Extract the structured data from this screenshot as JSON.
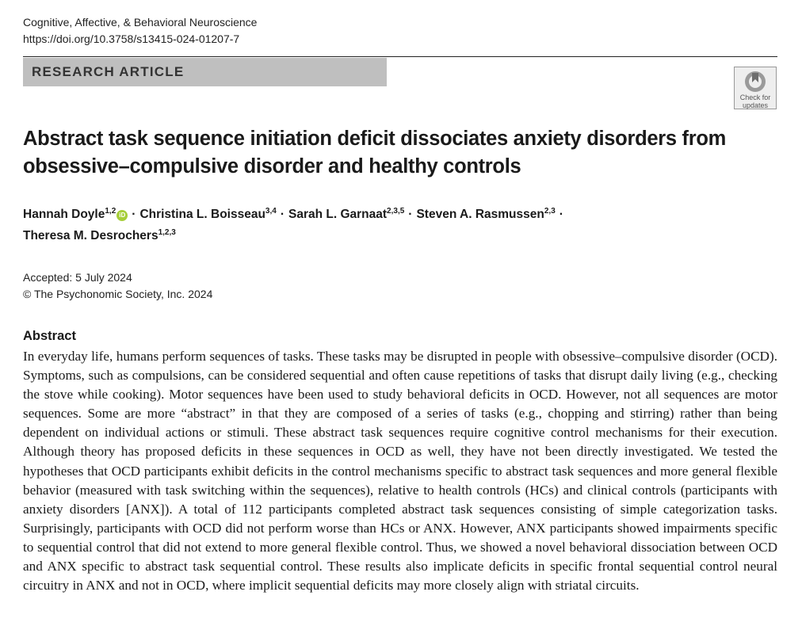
{
  "header": {
    "journal": "Cognitive, Affective, & Behavioral Neuroscience",
    "doi": "https://doi.org/10.3758/s13415-024-01207-7"
  },
  "article_type": "RESEARCH ARTICLE",
  "check_updates": {
    "line1": "Check for",
    "line2": "updates",
    "icon": "check-for-updates-icon"
  },
  "title": "Abstract task sequence initiation deficit dissociates anxiety disorders from obsessive–compulsive disorder and healthy controls",
  "authors": [
    {
      "name": "Hannah Doyle",
      "aff": "1,2",
      "orcid": true
    },
    {
      "name": "Christina L. Boisseau",
      "aff": "3,4"
    },
    {
      "name": "Sarah L. Garnaat",
      "aff": "2,3,5"
    },
    {
      "name": "Steven A. Rasmussen",
      "aff": "2,3"
    },
    {
      "name": "Theresa M. Desrochers",
      "aff": "1,2,3"
    }
  ],
  "author_separator": "·",
  "orcid_label": "iD",
  "accepted": "Accepted: 5 July 2024",
  "copyright": "© The Psychonomic Society, Inc. 2024",
  "abstract": {
    "heading": "Abstract",
    "text": "In everyday life, humans perform sequences of tasks. These tasks may be disrupted in people with obsessive–compulsive disorder (OCD). Symptoms, such as compulsions, can be considered sequential and often cause repetitions of tasks that disrupt daily living (e.g., checking the stove while cooking). Motor sequences have been used to study behavioral deficits in OCD. However, not all sequences are motor sequences. Some are more “abstract” in that they are composed of a series of tasks (e.g., chopping and stirring) rather than being dependent on individual actions or stimuli. These abstract task sequences require cognitive control mechanisms for their execution. Although theory has proposed deficits in these sequences in OCD as well, they have not been directly investigated. We tested the hypotheses that OCD participants exhibit deficits in the control mechanisms specific to abstract task sequences and more general flexible behavior (measured with task switching within the sequences), relative to health controls (HCs) and clinical controls (participants with anxiety disorders [ANX]). A total of 112 participants completed abstract task sequences consisting of simple categorization tasks. Surprisingly, participants with OCD did not perform worse than HCs or ANX. However, ANX participants showed impairments specific to sequential control that did not extend to more general flexible control. Thus, we showed a novel behavioral dissociation between OCD and ANX specific to abstract task sequential control. These results also implicate deficits in specific frontal sequential control neural circuitry in ANX and not in OCD, where implicit sequential deficits may more closely align with striatal circuits."
  }
}
